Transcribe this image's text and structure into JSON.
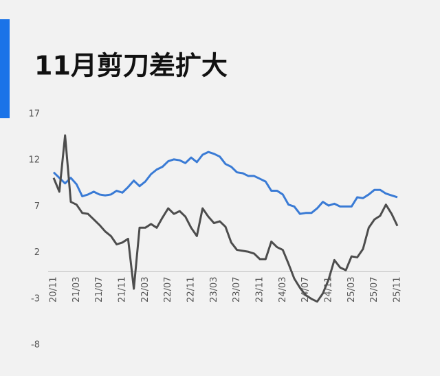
{
  "chart_data": {
    "type": "line",
    "title": "11月剪刀差扩大",
    "categories": [
      "20/11",
      null,
      null,
      null,
      "21/03",
      null,
      null,
      null,
      "21/07",
      null,
      null,
      null,
      "21/11",
      null,
      null,
      null,
      "22/03",
      null,
      null,
      null,
      "22/07",
      null,
      null,
      null,
      "22/11",
      null,
      null,
      null,
      "23/03",
      null,
      null,
      null,
      "23/07",
      null,
      null,
      null,
      "23/11",
      null,
      null,
      null,
      "24/03",
      null,
      null,
      null,
      "24/07",
      null,
      null,
      null,
      "24/11",
      null,
      null,
      null,
      "25/03",
      null,
      null,
      null,
      "25/07",
      null,
      null,
      null,
      "25/11"
    ],
    "series": [
      {
        "color": "#3a7bd5",
        "values": [
          10.7,
          10.1,
          9.5,
          10.1,
          9.4,
          8.1,
          8.3,
          8.6,
          8.3,
          8.2,
          8.3,
          8.7,
          8.5,
          9.1,
          9.8,
          9.2,
          9.7,
          10.5,
          11.0,
          11.3,
          11.9,
          12.1,
          12.0,
          11.7,
          12.3,
          11.8,
          12.6,
          12.9,
          12.7,
          12.4,
          11.6,
          11.3,
          10.7,
          10.6,
          10.3,
          10.3,
          10.0,
          9.7,
          8.7,
          8.7,
          8.3,
          7.2,
          7.0,
          6.2,
          6.3,
          6.3,
          6.8,
          7.5,
          7.1,
          7.3,
          7.0,
          7.0,
          7.0,
          8.0,
          7.9,
          8.3,
          8.8,
          8.8,
          8.4,
          8.2,
          8.0
        ]
      },
      {
        "color": "#4d4d4d",
        "values": [
          10.1,
          8.6,
          14.7,
          7.5,
          7.2,
          6.3,
          6.2,
          5.6,
          5.0,
          4.3,
          3.8,
          2.9,
          3.1,
          3.5,
          -1.9,
          4.7,
          4.7,
          5.1,
          4.7,
          5.8,
          6.8,
          6.2,
          6.5,
          5.9,
          4.7,
          3.8,
          6.8,
          5.9,
          5.2,
          5.4,
          4.8,
          3.1,
          2.3,
          2.2,
          2.1,
          1.9,
          1.3,
          1.3,
          3.2,
          2.6,
          2.3,
          0.8,
          -0.8,
          -1.8,
          -2.6,
          -3.0,
          -3.3,
          -2.4,
          -0.9,
          1.2,
          0.4,
          0.1,
          1.6,
          1.5,
          2.4,
          4.7,
          5.6,
          6.0,
          7.2,
          6.2,
          4.9
        ]
      }
    ],
    "ylim": [
      -8,
      17
    ],
    "yticks": [
      -8,
      -3,
      2,
      7,
      12,
      17
    ],
    "grid": false
  }
}
